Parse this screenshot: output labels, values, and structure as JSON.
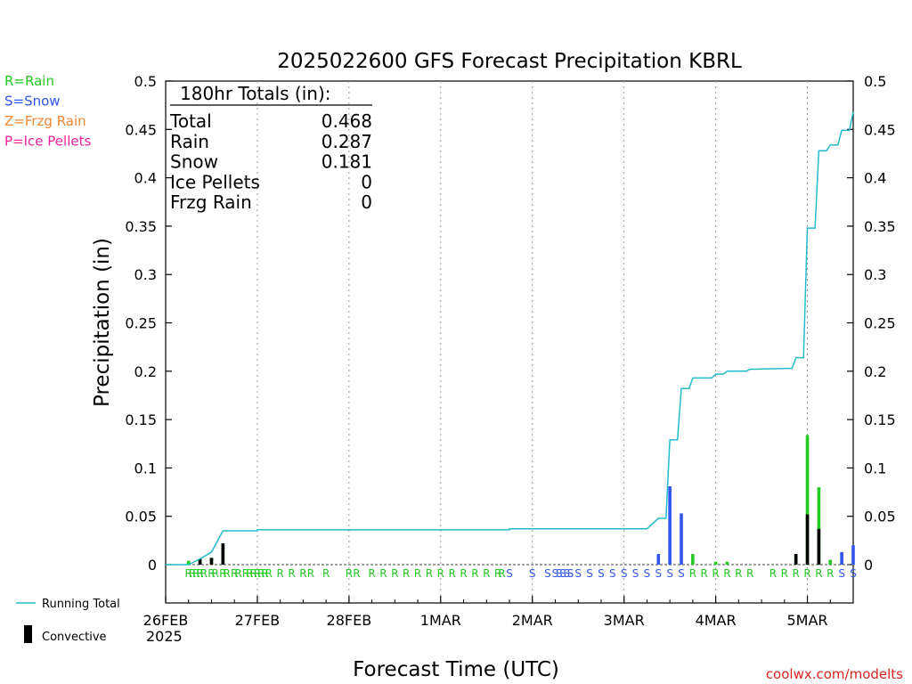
{
  "chart_data": {
    "type": "bar",
    "title": "2025022600 GFS Forecast Precipitation KBRL",
    "xlabel": "Forecast Time (UTC)",
    "ylabel": "Precipitation (in)",
    "ylim": [
      0,
      0.5
    ],
    "y_ticks": [
      "0",
      "0.05",
      "0.1",
      "0.15",
      "0.2",
      "0.25",
      "0.3",
      "0.35",
      "0.4",
      "0.45",
      "0.5"
    ],
    "x_ticks": [
      "26FEB",
      "27FEB",
      "28FEB",
      "1MAR",
      "2MAR",
      "3MAR",
      "4MAR",
      "5MAR"
    ],
    "x_year_label": "2025",
    "grid": "vertical-dotted",
    "legend_precip_types": [
      {
        "code": "R",
        "label": "R=Rain",
        "color": "#22cc22"
      },
      {
        "code": "S",
        "label": "S=Snow",
        "color": "#3355ee"
      },
      {
        "code": "Z",
        "label": "Z=Frzg Rain",
        "color": "#ee8833"
      },
      {
        "code": "P",
        "label": "P=Ice Pellets",
        "color": "#ee2299"
      }
    ],
    "legend_series": [
      {
        "label": "Running Total",
        "color": "#22bbcc"
      },
      {
        "label": "Convective",
        "color": "#000000"
      }
    ],
    "totals_box": {
      "heading": "180hr Totals (in):",
      "rows": [
        {
          "label": "Total",
          "value": "0.468"
        },
        {
          "label": "Rain",
          "value": "0.287"
        },
        {
          "label": "Snow",
          "value": "0.181"
        },
        {
          "label": "Ice Pellets",
          "value": "0"
        },
        {
          "label": "Frzg Rain",
          "value": "0"
        }
      ]
    },
    "forecast_hours_step": 3,
    "bars": [
      {
        "hour": 6,
        "total": 0.004,
        "convective": 0.0,
        "type": "R"
      },
      {
        "hour": 9,
        "total": 0.006,
        "convective": 0.006,
        "type": "R"
      },
      {
        "hour": 12,
        "total": 0.007,
        "convective": 0.007,
        "type": "R"
      },
      {
        "hour": 15,
        "total": 0.022,
        "convective": 0.022,
        "type": "R"
      },
      {
        "hour": 129,
        "total": 0.011,
        "convective": 0.0,
        "type": "S"
      },
      {
        "hour": 132,
        "total": 0.081,
        "convective": 0.0,
        "type": "S"
      },
      {
        "hour": 135,
        "total": 0.053,
        "convective": 0.0,
        "type": "S"
      },
      {
        "hour": 138,
        "total": 0.011,
        "convective": 0.0,
        "type": "R"
      },
      {
        "hour": 144,
        "total": 0.003,
        "convective": 0.0,
        "type": "R"
      },
      {
        "hour": 147,
        "total": 0.003,
        "convective": 0.0,
        "type": "R"
      },
      {
        "hour": 165,
        "total": 0.011,
        "convective": 0.011,
        "type": "R"
      },
      {
        "hour": 168,
        "total": 0.134,
        "convective": 0.052,
        "type": "R"
      },
      {
        "hour": 171,
        "total": 0.08,
        "convective": 0.037,
        "type": "R"
      },
      {
        "hour": 174,
        "total": 0.005,
        "convective": 0.0,
        "type": "R"
      },
      {
        "hour": 177,
        "total": 0.013,
        "convective": 0.0,
        "type": "S"
      },
      {
        "hour": 180,
        "total": 0.02,
        "convective": 0.0,
        "type": "S"
      }
    ],
    "running_total": [
      {
        "hour": 0,
        "value": 0.0
      },
      {
        "hour": 6,
        "value": 0.0
      },
      {
        "hour": 9,
        "value": 0.006
      },
      {
        "hour": 12,
        "value": 0.013
      },
      {
        "hour": 15,
        "value": 0.035
      },
      {
        "hour": 24,
        "value": 0.035
      },
      {
        "hour": 24,
        "value": 0.036
      },
      {
        "hour": 90,
        "value": 0.036
      },
      {
        "hour": 90,
        "value": 0.037
      },
      {
        "hour": 126,
        "value": 0.037
      },
      {
        "hour": 129,
        "value": 0.048
      },
      {
        "hour": 131,
        "value": 0.048
      },
      {
        "hour": 132,
        "value": 0.129
      },
      {
        "hour": 134,
        "value": 0.129
      },
      {
        "hour": 135,
        "value": 0.182
      },
      {
        "hour": 137,
        "value": 0.182
      },
      {
        "hour": 138,
        "value": 0.193
      },
      {
        "hour": 143,
        "value": 0.193
      },
      {
        "hour": 144,
        "value": 0.197
      },
      {
        "hour": 146,
        "value": 0.197
      },
      {
        "hour": 147,
        "value": 0.2
      },
      {
        "hour": 152,
        "value": 0.2
      },
      {
        "hour": 153,
        "value": 0.202
      },
      {
        "hour": 164,
        "value": 0.203
      },
      {
        "hour": 165,
        "value": 0.214
      },
      {
        "hour": 167,
        "value": 0.214
      },
      {
        "hour": 168,
        "value": 0.348
      },
      {
        "hour": 170,
        "value": 0.348
      },
      {
        "hour": 171,
        "value": 0.428
      },
      {
        "hour": 173,
        "value": 0.428
      },
      {
        "hour": 174,
        "value": 0.434
      },
      {
        "hour": 176,
        "value": 0.434
      },
      {
        "hour": 177,
        "value": 0.449
      },
      {
        "hour": 179,
        "value": 0.449
      },
      {
        "hour": 180,
        "value": 0.468
      }
    ],
    "type_markers": [
      {
        "hour": 6,
        "type": "R"
      },
      {
        "hour": 7,
        "type": "R"
      },
      {
        "hour": 8,
        "type": "R"
      },
      {
        "hour": 9,
        "type": "R"
      },
      {
        "hour": 10,
        "type": "R"
      },
      {
        "hour": 12,
        "type": "R"
      },
      {
        "hour": 13,
        "type": "R"
      },
      {
        "hour": 15,
        "type": "R"
      },
      {
        "hour": 16,
        "type": "R"
      },
      {
        "hour": 18,
        "type": "R"
      },
      {
        "hour": 19,
        "type": "R"
      },
      {
        "hour": 21,
        "type": "R"
      },
      {
        "hour": 22,
        "type": "R"
      },
      {
        "hour": 23,
        "type": "R"
      },
      {
        "hour": 24,
        "type": "R"
      },
      {
        "hour": 25,
        "type": "R"
      },
      {
        "hour": 26,
        "type": "R"
      },
      {
        "hour": 27,
        "type": "R"
      },
      {
        "hour": 30,
        "type": "R"
      },
      {
        "hour": 33,
        "type": "R"
      },
      {
        "hour": 36,
        "type": "R"
      },
      {
        "hour": 38,
        "type": "R"
      },
      {
        "hour": 42,
        "type": "R"
      },
      {
        "hour": 48,
        "type": "R"
      },
      {
        "hour": 50,
        "type": "R"
      },
      {
        "hour": 54,
        "type": "R"
      },
      {
        "hour": 57,
        "type": "R"
      },
      {
        "hour": 60,
        "type": "R"
      },
      {
        "hour": 63,
        "type": "R"
      },
      {
        "hour": 66,
        "type": "R"
      },
      {
        "hour": 69,
        "type": "R"
      },
      {
        "hour": 72,
        "type": "R"
      },
      {
        "hour": 75,
        "type": "R"
      },
      {
        "hour": 78,
        "type": "R"
      },
      {
        "hour": 81,
        "type": "R"
      },
      {
        "hour": 84,
        "type": "R"
      },
      {
        "hour": 87,
        "type": "R"
      },
      {
        "hour": 88,
        "type": "R"
      },
      {
        "hour": 90,
        "type": "S"
      },
      {
        "hour": 96,
        "type": "S"
      },
      {
        "hour": 100,
        "type": "S"
      },
      {
        "hour": 102,
        "type": "S"
      },
      {
        "hour": 103,
        "type": "S"
      },
      {
        "hour": 104,
        "type": "S"
      },
      {
        "hour": 105,
        "type": "S"
      },
      {
        "hour": 106,
        "type": "S"
      },
      {
        "hour": 108,
        "type": "S"
      },
      {
        "hour": 111,
        "type": "S"
      },
      {
        "hour": 114,
        "type": "S"
      },
      {
        "hour": 117,
        "type": "S"
      },
      {
        "hour": 120,
        "type": "S"
      },
      {
        "hour": 123,
        "type": "S"
      },
      {
        "hour": 126,
        "type": "S"
      },
      {
        "hour": 129,
        "type": "S"
      },
      {
        "hour": 132,
        "type": "S"
      },
      {
        "hour": 135,
        "type": "S"
      },
      {
        "hour": 138,
        "type": "R"
      },
      {
        "hour": 141,
        "type": "R"
      },
      {
        "hour": 144,
        "type": "R"
      },
      {
        "hour": 147,
        "type": "R"
      },
      {
        "hour": 150,
        "type": "R"
      },
      {
        "hour": 153,
        "type": "R"
      },
      {
        "hour": 159,
        "type": "R"
      },
      {
        "hour": 162,
        "type": "R"
      },
      {
        "hour": 165,
        "type": "R"
      },
      {
        "hour": 168,
        "type": "R"
      },
      {
        "hour": 171,
        "type": "R"
      },
      {
        "hour": 174,
        "type": "R"
      },
      {
        "hour": 177,
        "type": "S"
      },
      {
        "hour": 180,
        "type": "S"
      }
    ],
    "x_hour_range": [
      0,
      180
    ]
  },
  "credit": "coolwx.com/modelts",
  "colors": {
    "running_total": "#22bbcc",
    "convective": "#000000",
    "axis": "#000000",
    "grid": "#999999",
    "credit": "#dd2222"
  }
}
